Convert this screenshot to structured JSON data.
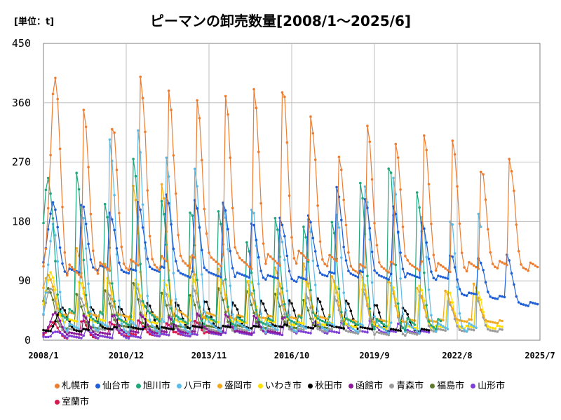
{
  "header": {
    "unit_label": "[単位：t]",
    "title": "ピーマンの卸売数量[2008/1～2025/6]"
  },
  "chart_data": {
    "type": "line",
    "title": "ピーマンの卸売数量[2008/1～2025/6]",
    "unit": "[単位：t]",
    "x_ticks": [
      "2008/1",
      "2010/12",
      "2013/11",
      "2016/10",
      "2019/9",
      "2022/8",
      "2025/7"
    ],
    "x_tick_months": [
      0,
      35,
      70,
      105,
      140,
      175,
      210
    ],
    "y_ticks": [
      0,
      90,
      180,
      270,
      360,
      450
    ],
    "ylim": [
      0,
      450
    ],
    "grid": true,
    "legend_position": "bottom",
    "series": [
      {
        "name": "札幌市",
        "color": "#ed7d31",
        "start": 0,
        "end": 209,
        "peak_months": [
          5,
          17,
          29,
          41,
          53,
          65,
          77,
          89,
          101,
          113,
          125,
          137,
          149,
          161,
          173,
          185,
          197
        ],
        "peaks": [
          390,
          340,
          327,
          405,
          380,
          362,
          365,
          372,
          386,
          345,
          280,
          325,
          295,
          305,
          295,
          260,
          278
        ],
        "mins": [
          105,
          110,
          115,
          118,
          120,
          122,
          118,
          120,
          125,
          120,
          108,
          110,
          112,
          110,
          112,
          115,
          112
        ]
      },
      {
        "name": "仙台市",
        "color": "#1f5fd6",
        "start": 0,
        "end": 209,
        "peak_months": [
          4,
          16,
          28,
          40,
          52,
          64,
          76,
          88,
          100,
          112,
          124,
          136,
          148,
          160,
          172,
          184,
          196
        ],
        "peaks": [
          205,
          208,
          195,
          210,
          220,
          210,
          205,
          180,
          188,
          190,
          232,
          212,
          200,
          175,
          130,
          125,
          130
        ],
        "mins": [
          105,
          110,
          105,
          108,
          100,
          100,
          98,
          95,
          92,
          100,
          100,
          96,
          98,
          95,
          70,
          65,
          55
        ]
      },
      {
        "name": "旭川市",
        "color": "#1fa67a",
        "start": 0,
        "end": 168,
        "peak_months": [
          2,
          14,
          26,
          38,
          50,
          62,
          74,
          86,
          98,
          110,
          122,
          134,
          146,
          158
        ],
        "peaks": [
          250,
          255,
          205,
          270,
          205,
          200,
          200,
          150,
          185,
          170,
          175,
          230,
          268,
          228
        ],
        "mins": [
          40,
          35,
          30,
          38,
          30,
          30,
          28,
          28,
          30,
          30,
          28,
          25,
          25,
          25
        ]
      },
      {
        "name": "八戸市",
        "color": "#5bbcea",
        "start": 0,
        "end": 185,
        "peak_months": [
          4,
          16,
          28,
          40,
          52,
          64,
          76,
          88,
          100,
          112,
          124,
          136,
          148,
          160,
          172,
          184
        ],
        "peaks": [
          170,
          195,
          310,
          320,
          275,
          255,
          200,
          205,
          170,
          185,
          190,
          230,
          240,
          180,
          185,
          195
        ],
        "mins": [
          20,
          22,
          20,
          22,
          20,
          22,
          20,
          18,
          18,
          20,
          18,
          18,
          18,
          20,
          20,
          20
        ]
      },
      {
        "name": "盛岡市",
        "color": "#f2a91f",
        "start": 0,
        "end": 194,
        "peak_months": [
          2,
          14,
          26,
          38,
          50,
          62,
          74,
          86,
          98,
          110,
          122,
          134,
          146,
          158,
          170,
          182
        ],
        "peaks": [
          100,
          140,
          115,
          230,
          230,
          130,
          110,
          90,
          110,
          115,
          95,
          100,
          90,
          80,
          75,
          85
        ],
        "mins": [
          40,
          40,
          38,
          40,
          40,
          38,
          35,
          35,
          35,
          35,
          30,
          30,
          30,
          30,
          30,
          28
        ]
      },
      {
        "name": "いわき市",
        "color": "#ffe000",
        "start": 0,
        "end": 194,
        "peak_months": [
          3,
          15,
          27,
          39,
          51,
          63,
          75,
          87,
          99,
          111,
          123,
          135,
          147,
          159,
          171,
          183
        ],
        "peaks": [
          100,
          90,
          95,
          92,
          90,
          95,
          90,
          92,
          95,
          90,
          88,
          90,
          85,
          80,
          75,
          80
        ],
        "mins": [
          30,
          30,
          30,
          28,
          28,
          30,
          28,
          28,
          25,
          25,
          22,
          20,
          20,
          20,
          20,
          20
        ]
      },
      {
        "name": "秋田市",
        "color": "#000000",
        "start": 0,
        "end": 163,
        "peak_months": [
          8,
          20,
          32,
          44,
          56,
          68,
          80,
          92,
          104,
          116,
          128,
          140,
          152
        ],
        "peaks": [
          50,
          50,
          50,
          55,
          55,
          60,
          58,
          60,
          60,
          62,
          58,
          55,
          50
        ],
        "mins": [
          15,
          18,
          18,
          18,
          20,
          20,
          20,
          22,
          20,
          20,
          18,
          15,
          15
        ]
      },
      {
        "name": "函館市",
        "color": "#8b1a9a",
        "start": 0,
        "end": 102,
        "peak_months": [
          5,
          17,
          29,
          41,
          53,
          65,
          77,
          89,
          101
        ],
        "peaks": [
          40,
          35,
          38,
          40,
          35,
          40,
          38,
          35,
          35
        ],
        "mins": [
          10,
          10,
          12,
          12,
          12,
          12,
          12,
          12,
          12
        ]
      },
      {
        "name": "青森市",
        "color": "#9a9a9a",
        "start": 0,
        "end": 194,
        "peak_months": [
          3,
          15,
          27,
          39,
          51,
          63,
          75,
          87,
          99,
          111,
          123,
          135,
          147,
          159,
          171,
          183
        ],
        "peaks": [
          80,
          70,
          75,
          85,
          75,
          80,
          95,
          80,
          78,
          70,
          65,
          75,
          80,
          70,
          60,
          65
        ],
        "mins": [
          15,
          15,
          15,
          15,
          15,
          15,
          15,
          15,
          15,
          15,
          12,
          10,
          10,
          15,
          15,
          15
        ]
      },
      {
        "name": "福島市",
        "color": "#5c7a2a",
        "start": 0,
        "end": 120,
        "peak_months": [
          2,
          14,
          26,
          38,
          50,
          62,
          74,
          86,
          98,
          110
        ],
        "peaks": [
          80,
          70,
          75,
          85,
          70,
          70,
          80,
          75,
          70,
          60
        ],
        "mins": [
          20,
          20,
          22,
          20,
          20,
          20,
          20,
          20,
          20,
          20
        ]
      },
      {
        "name": "山形市",
        "color": "#7f3fd6",
        "start": 0,
        "end": 163,
        "peak_months": [
          6,
          18,
          30,
          42,
          54,
          66,
          78,
          90,
          102,
          114,
          126,
          138,
          150
        ],
        "peaks": [
          12,
          15,
          18,
          20,
          22,
          25,
          22,
          25,
          25,
          28,
          28,
          30,
          25
        ],
        "mins": [
          5,
          5,
          5,
          8,
          8,
          10,
          10,
          10,
          12,
          12,
          12,
          12,
          12
        ]
      },
      {
        "name": "室蘭市",
        "color": "#d6194f",
        "start": 0,
        "end": 72,
        "peak_months": [
          4,
          16,
          28,
          40,
          52,
          64
        ],
        "peaks": [
          25,
          30,
          28,
          30,
          25,
          28
        ],
        "mins": [
          5,
          5,
          8,
          8,
          8,
          10
        ]
      }
    ]
  }
}
